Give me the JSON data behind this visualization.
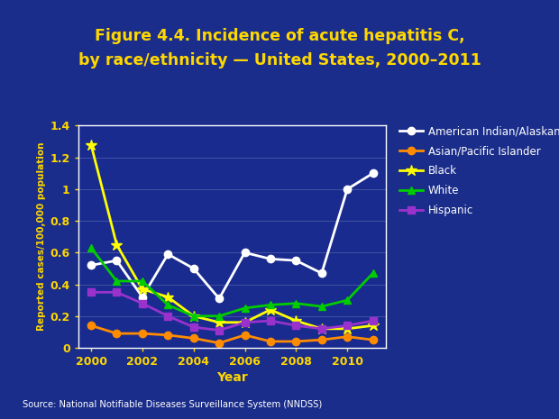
{
  "title_line1": "Figure 4.4. Incidence of acute hepatitis C,",
  "title_line2": "by race/ethnicity — United States, 2000–2011",
  "xlabel": "Year",
  "ylabel": "Reported cases/100,000 population",
  "source": "Source: National Notifiable Diseases Surveillance System (NNDSS)",
  "years": [
    2000,
    2001,
    2002,
    2003,
    2004,
    2005,
    2006,
    2007,
    2008,
    2009,
    2010,
    2011
  ],
  "series": {
    "American Indian/Alaskan Native": {
      "color": "#ffffff",
      "marker": "o",
      "markersize": 6,
      "linewidth": 2.0,
      "values": [
        0.52,
        0.55,
        0.32,
        0.59,
        0.5,
        0.31,
        0.6,
        0.56,
        0.55,
        0.47,
        1.0,
        1.1
      ]
    },
    "Asian/Pacific Islander": {
      "color": "#ff8c00",
      "marker": "o",
      "markersize": 6,
      "linewidth": 2.0,
      "values": [
        0.14,
        0.09,
        0.09,
        0.08,
        0.06,
        0.03,
        0.08,
        0.04,
        0.04,
        0.05,
        0.07,
        0.05
      ]
    },
    "Black": {
      "color": "#ffff00",
      "marker": "*",
      "markersize": 9,
      "linewidth": 2.0,
      "values": [
        1.28,
        0.65,
        0.37,
        0.32,
        0.2,
        0.16,
        0.16,
        0.24,
        0.17,
        0.12,
        0.12,
        0.14
      ]
    },
    "White": {
      "color": "#00cc00",
      "marker": "^",
      "markersize": 6,
      "linewidth": 2.0,
      "values": [
        0.63,
        0.42,
        0.42,
        0.27,
        0.2,
        0.2,
        0.25,
        0.27,
        0.28,
        0.26,
        0.3,
        0.47
      ]
    },
    "Hispanic": {
      "color": "#9932cc",
      "marker": "s",
      "markersize": 6,
      "linewidth": 2.0,
      "values": [
        0.35,
        0.35,
        0.28,
        0.2,
        0.13,
        0.11,
        0.16,
        0.17,
        0.14,
        0.12,
        0.14,
        0.17
      ]
    }
  },
  "ylim": [
    0,
    1.4
  ],
  "yticks": [
    0,
    0.2,
    0.4,
    0.6,
    0.8,
    1.0,
    1.2,
    1.4
  ],
  "xticks": [
    2000,
    2002,
    2004,
    2006,
    2008,
    2010
  ],
  "bg_outer": "#1a2d8a",
  "bg_plot": "#192b8f",
  "title_color": "#ffd700",
  "axis_label_color": "#ffd700",
  "tick_label_color": "#ffd700",
  "legend_text_color": "#ffffff",
  "source_color": "#ffffff",
  "grid_color": "#ffffff",
  "spine_color": "#ffffff"
}
